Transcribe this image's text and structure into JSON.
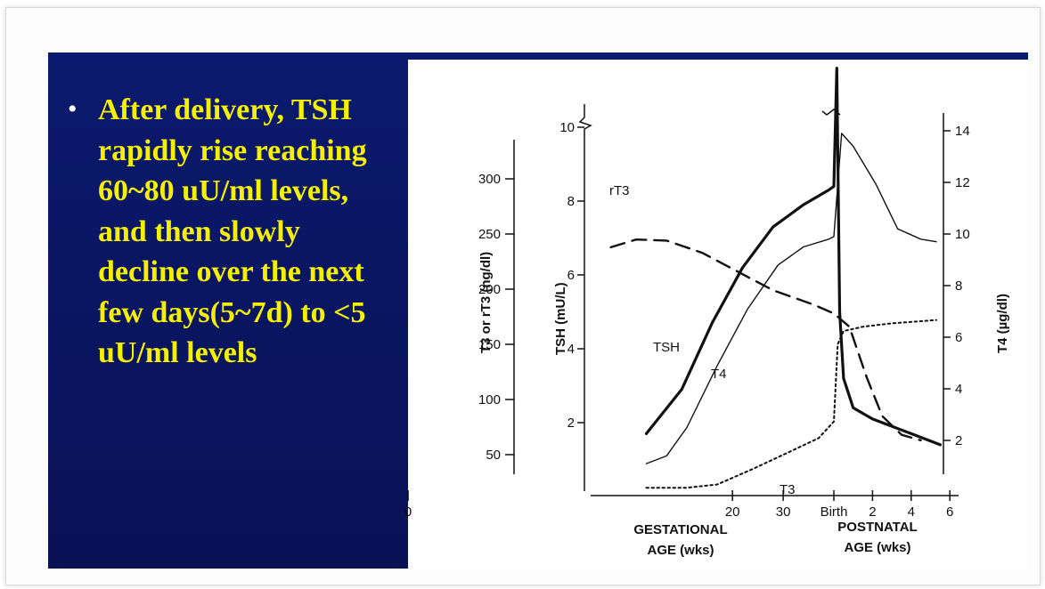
{
  "slide": {
    "bullet": "After delivery, TSH rapidly rise reaching 60~80 uU/ml levels, and then slowly decline over the next few days(5~7d) to <5 uU/ml levels"
  },
  "chart_data": {
    "type": "line",
    "axes": {
      "x": {
        "gestational_ticks": [
          "0",
          "20",
          "30"
        ],
        "postnatal_ticks": [
          "Birth",
          "2",
          "4",
          "6"
        ],
        "gestational_label": [
          "GESTATIONAL",
          "AGE (wks)"
        ],
        "postnatal_label": [
          "POSTNATAL",
          "AGE (wks)"
        ]
      },
      "y_t3_rt3": {
        "label": "T3 or rT3 (ng/dl)",
        "ticks": [
          50,
          100,
          150,
          200,
          250,
          300
        ]
      },
      "y_tsh": {
        "label": "TSH (mU/L)",
        "ticks": [
          2,
          4,
          6,
          8,
          10
        ]
      },
      "y_t4": {
        "label": "T4 (µg/dl)",
        "ticks": [
          2,
          4,
          6,
          8,
          10,
          12,
          14
        ]
      }
    },
    "series": [
      {
        "name": "TSH",
        "axis": "y_tsh",
        "style": "thick",
        "points": [
          [
            -37,
            1.7
          ],
          [
            -30,
            2.9
          ],
          [
            -24,
            4.7
          ],
          [
            -18,
            6.2
          ],
          [
            -12,
            7.3
          ],
          [
            -6,
            7.9
          ],
          [
            -1,
            8.3
          ],
          [
            0,
            8.4
          ],
          [
            0.15,
            11.6
          ],
          [
            0.3,
            5.0
          ],
          [
            0.5,
            3.2
          ],
          [
            1.0,
            2.4
          ],
          [
            2.0,
            2.1
          ],
          [
            4.0,
            1.7
          ],
          [
            5.5,
            1.4
          ]
        ]
      },
      {
        "name": "T4",
        "axis": "y_t4",
        "style": "thin",
        "points": [
          [
            -37,
            1.1
          ],
          [
            -33,
            1.4
          ],
          [
            -29,
            2.5
          ],
          [
            -23,
            4.9
          ],
          [
            -17,
            7.1
          ],
          [
            -11,
            8.8
          ],
          [
            -6,
            9.5
          ],
          [
            -1,
            9.8
          ],
          [
            0,
            9.9
          ],
          [
            0.4,
            13.9
          ],
          [
            1.0,
            13.4
          ],
          [
            2.2,
            11.9
          ],
          [
            3.3,
            10.2
          ],
          [
            4.5,
            9.8
          ],
          [
            5.3,
            9.7
          ]
        ]
      },
      {
        "name": "T3",
        "axis": "y_t3_rt3",
        "style": "dotted",
        "points": [
          [
            -37,
            20
          ],
          [
            -29,
            20
          ],
          [
            -23,
            23
          ],
          [
            -16,
            37
          ],
          [
            -9,
            52
          ],
          [
            -3,
            65
          ],
          [
            0,
            80
          ],
          [
            0.2,
            150
          ],
          [
            0.5,
            162
          ],
          [
            1.5,
            166
          ],
          [
            3.0,
            169
          ],
          [
            4.5,
            171
          ],
          [
            5.3,
            172
          ]
        ]
      },
      {
        "name": "rT3",
        "axis": "y_t3_rt3",
        "style": "dashed",
        "points": [
          [
            -44,
            238
          ],
          [
            -39,
            245
          ],
          [
            -33,
            244
          ],
          [
            -26,
            233
          ],
          [
            -19,
            216
          ],
          [
            -12,
            199
          ],
          [
            -4,
            186
          ],
          [
            0,
            178
          ],
          [
            0.8,
            166
          ],
          [
            1.7,
            120
          ],
          [
            2.5,
            85
          ],
          [
            3.5,
            68
          ],
          [
            4.5,
            63
          ]
        ]
      }
    ],
    "labels": {
      "tsh": "TSH",
      "t4": "T4",
      "t3": "T3",
      "rt3": "rT3"
    }
  }
}
